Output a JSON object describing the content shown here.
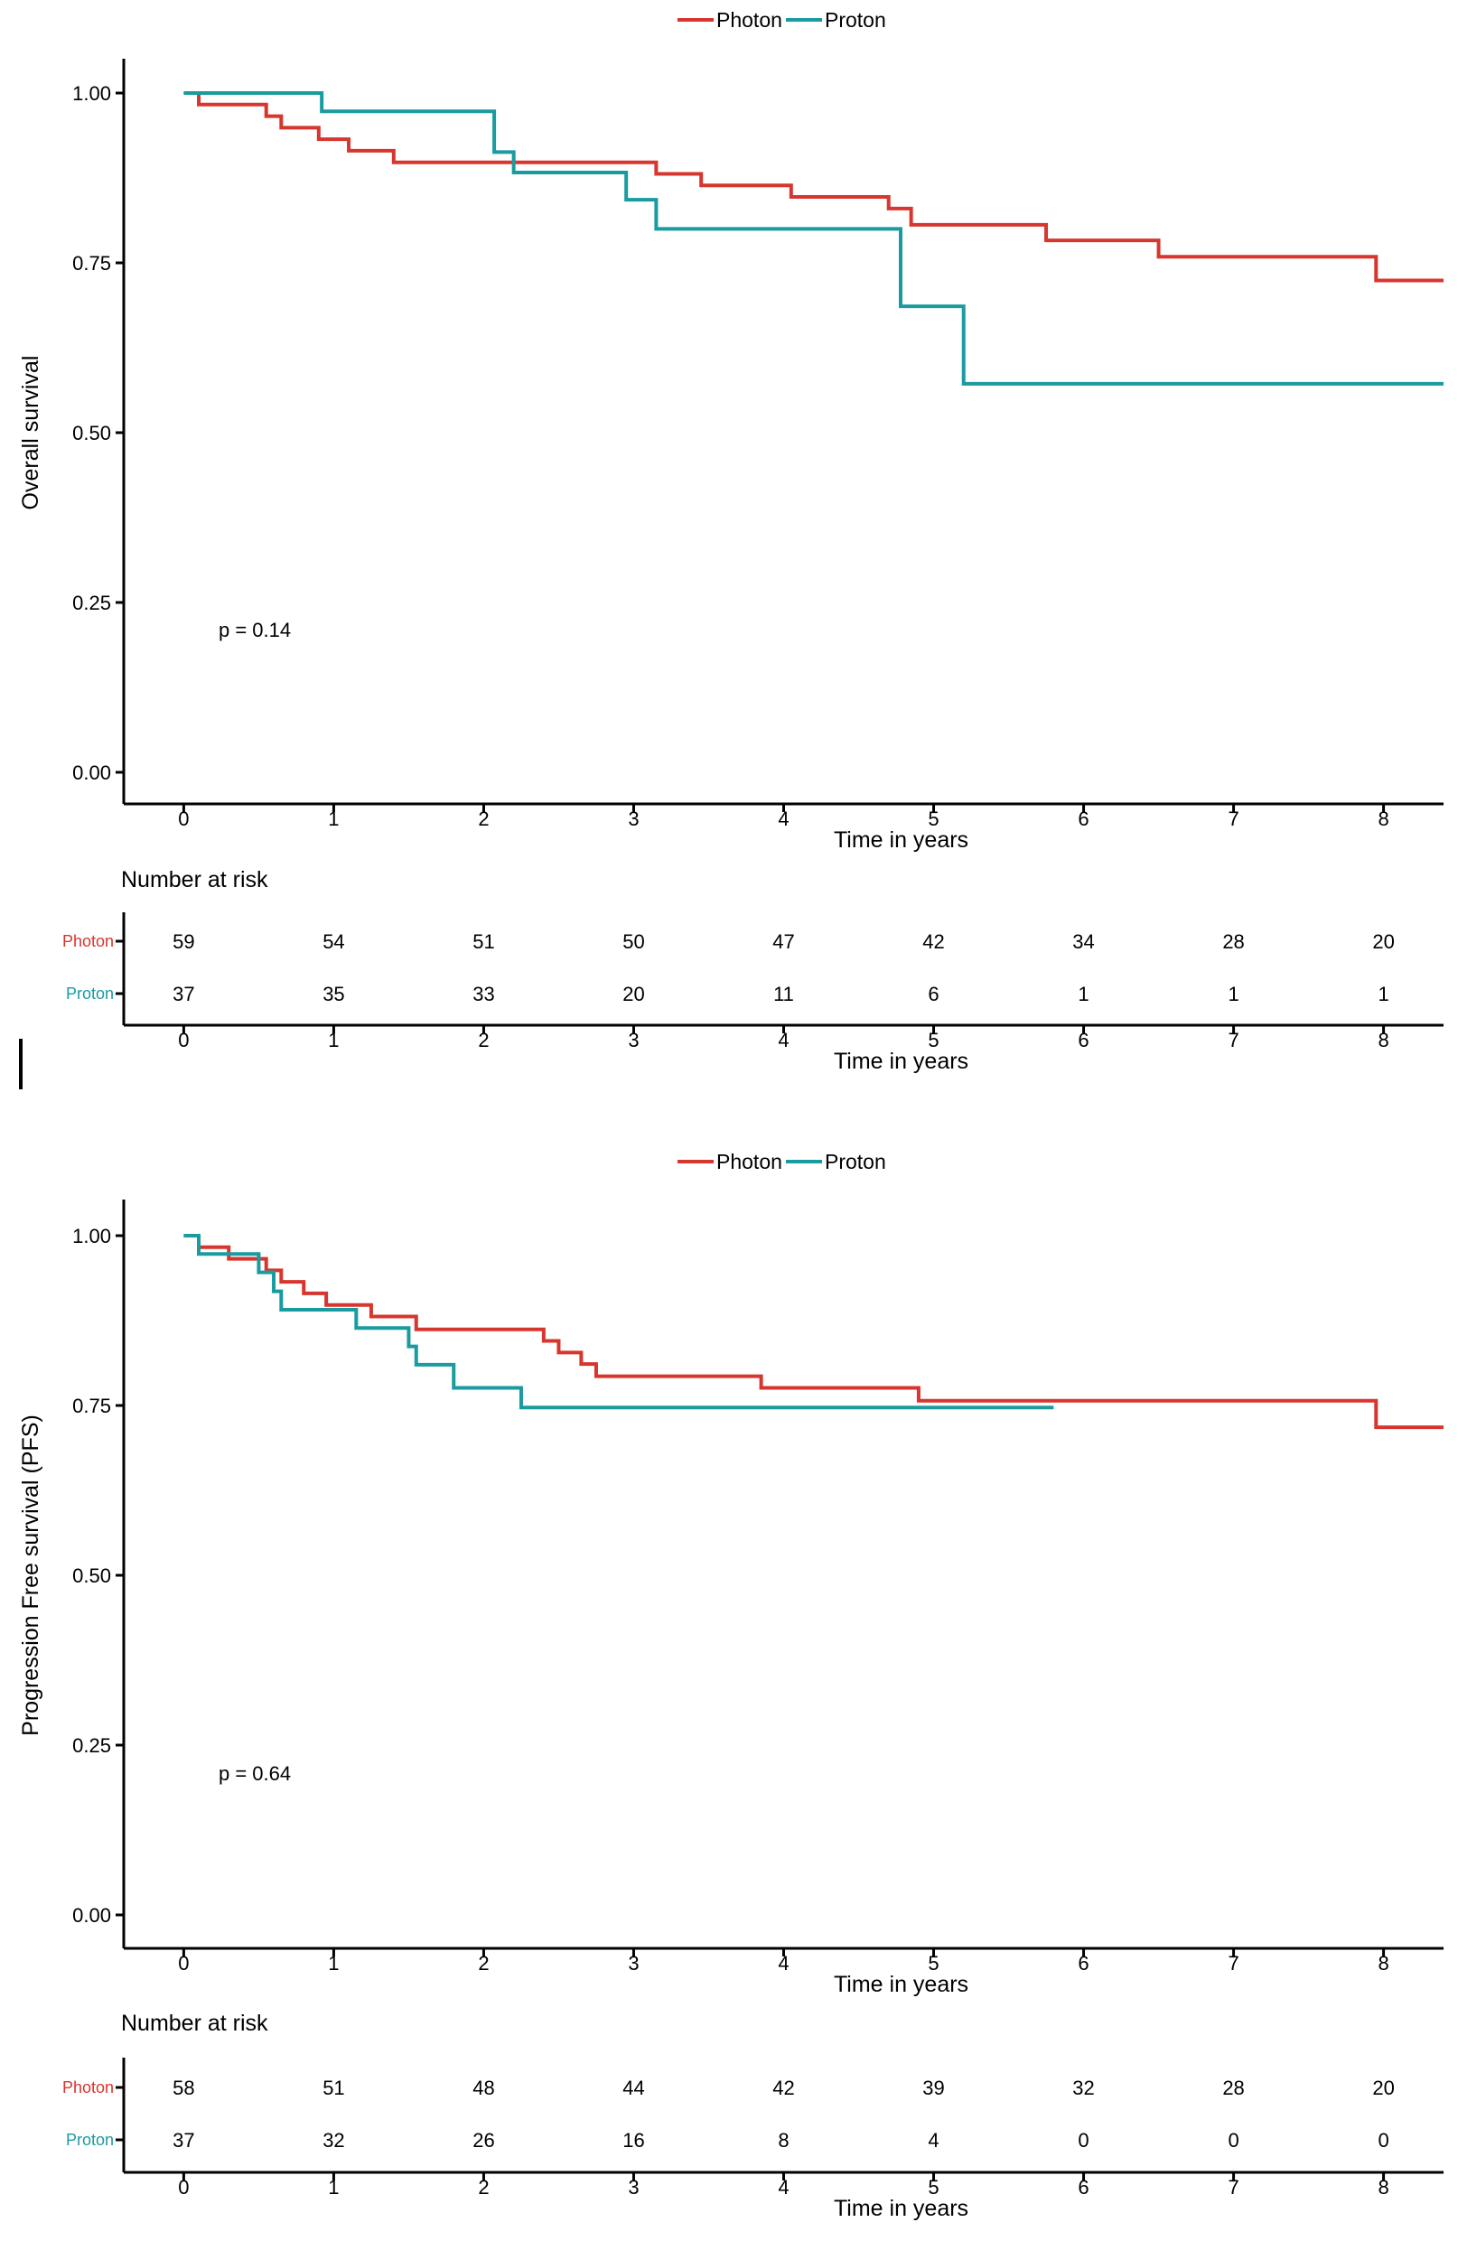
{
  "colors": {
    "photon": "#d7362f",
    "proton": "#1a9ba0"
  },
  "chart_data": [
    {
      "type": "line",
      "ylabel": "Overall survival",
      "xlabel": "Time in years",
      "xlim": [
        -0.4,
        8.4
      ],
      "ylim": [
        0,
        1
      ],
      "x_ticks": [
        "0",
        "1",
        "2",
        "3",
        "4",
        "5",
        "6",
        "7",
        "8"
      ],
      "y_ticks": [
        "0.00",
        "0.25",
        "0.50",
        "0.75",
        "1.00"
      ],
      "legend": {
        "position": "top",
        "entries": [
          "Photon",
          "Proton"
        ]
      },
      "annotation": "p = 0.14",
      "grid": false,
      "series": [
        {
          "name": "Photon",
          "color": "#d7362f",
          "steps": [
            [
              0,
              1.0
            ],
            [
              0.1,
              0.983
            ],
            [
              0.55,
              0.966
            ],
            [
              0.65,
              0.949
            ],
            [
              0.9,
              0.932
            ],
            [
              1.1,
              0.915
            ],
            [
              1.4,
              0.898
            ],
            [
              3.15,
              0.881
            ],
            [
              3.45,
              0.864
            ],
            [
              4.05,
              0.847
            ],
            [
              4.7,
              0.83
            ],
            [
              4.85,
              0.806
            ],
            [
              5.75,
              0.783
            ],
            [
              6.5,
              0.759
            ],
            [
              7.95,
              0.724
            ],
            [
              8.4,
              0.724
            ]
          ]
        },
        {
          "name": "Proton",
          "color": "#1a9ba0",
          "steps": [
            [
              0,
              1.0
            ],
            [
              0.92,
              0.973
            ],
            [
              2.07,
              0.913
            ],
            [
              2.2,
              0.883
            ],
            [
              2.95,
              0.843
            ],
            [
              3.15,
              0.8
            ],
            [
              4.78,
              0.686
            ],
            [
              5.2,
              0.572
            ],
            [
              8.4,
              0.572
            ]
          ]
        }
      ],
      "risk_table": {
        "title": "Number at risk",
        "groups": [
          "Photon",
          "Proton"
        ],
        "times": [
          0,
          1,
          2,
          3,
          4,
          5,
          6,
          7,
          8
        ],
        "values": [
          [
            59,
            54,
            51,
            50,
            47,
            42,
            34,
            28,
            20
          ],
          [
            37,
            35,
            33,
            20,
            11,
            6,
            1,
            1,
            1
          ]
        ],
        "xlabel": "Time in years",
        "x_ticks": [
          "0",
          "1",
          "2",
          "3",
          "4",
          "5",
          "6",
          "7",
          "8"
        ]
      }
    },
    {
      "type": "line",
      "ylabel": "Progression Free survival (PFS)",
      "xlabel": "Time in years",
      "xlim": [
        -0.4,
        8.4
      ],
      "ylim": [
        0,
        1
      ],
      "x_ticks": [
        "0",
        "1",
        "2",
        "3",
        "4",
        "5",
        "6",
        "7",
        "8"
      ],
      "y_ticks": [
        "0.00",
        "0.25",
        "0.50",
        "0.75",
        "1.00"
      ],
      "legend": {
        "position": "top",
        "entries": [
          "Photon",
          "Proton"
        ]
      },
      "annotation": "p = 0.64",
      "grid": false,
      "series": [
        {
          "name": "Photon",
          "color": "#d7362f",
          "steps": [
            [
              0,
              1.0
            ],
            [
              0.1,
              0.983
            ],
            [
              0.3,
              0.966
            ],
            [
              0.55,
              0.949
            ],
            [
              0.65,
              0.932
            ],
            [
              0.8,
              0.915
            ],
            [
              0.95,
              0.898
            ],
            [
              1.25,
              0.881
            ],
            [
              1.55,
              0.862
            ],
            [
              2.4,
              0.845
            ],
            [
              2.5,
              0.828
            ],
            [
              2.65,
              0.811
            ],
            [
              2.75,
              0.793
            ],
            [
              3.85,
              0.776
            ],
            [
              4.9,
              0.757
            ],
            [
              7.95,
              0.718
            ],
            [
              8.4,
              0.718
            ]
          ]
        },
        {
          "name": "Proton",
          "color": "#1a9ba0",
          "steps": [
            [
              0,
              1.0
            ],
            [
              0.1,
              0.973
            ],
            [
              0.5,
              0.946
            ],
            [
              0.6,
              0.918
            ],
            [
              0.65,
              0.891
            ],
            [
              1.15,
              0.864
            ],
            [
              1.5,
              0.837
            ],
            [
              1.55,
              0.81
            ],
            [
              1.8,
              0.776
            ],
            [
              2.25,
              0.747
            ],
            [
              5.8,
              0.747
            ]
          ]
        }
      ],
      "risk_table": {
        "title": "Number at risk",
        "groups": [
          "Photon",
          "Proton"
        ],
        "times": [
          0,
          1,
          2,
          3,
          4,
          5,
          6,
          7,
          8
        ],
        "values": [
          [
            58,
            51,
            48,
            44,
            42,
            39,
            32,
            28,
            20
          ],
          [
            37,
            32,
            26,
            16,
            8,
            4,
            0,
            0,
            0
          ]
        ],
        "xlabel": "Time in years",
        "x_ticks": [
          "0",
          "1",
          "2",
          "3",
          "4",
          "5",
          "6",
          "7",
          "8"
        ]
      }
    }
  ]
}
